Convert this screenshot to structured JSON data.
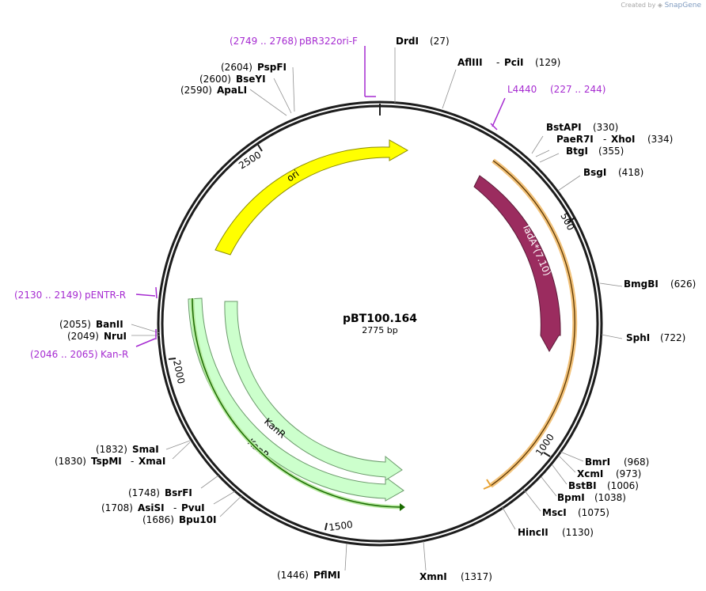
{
  "credit": {
    "prefix": "Created by",
    "brand": "SnapGene"
  },
  "plasmid": {
    "name": "pBT100.164",
    "length_label": "2775 bp",
    "length": 2775
  },
  "colors": {
    "ori": "#ffff00",
    "tada": "#9b2c5f",
    "kanr": "#ccffcc",
    "orf": "#e8a233",
    "orf_dark": "#1a6b00",
    "primer": "#a62bd1",
    "backbone": "#1c1c1c"
  },
  "features": [
    {
      "label": "ori",
      "color": "#ffff00"
    },
    {
      "label": "TadA*(7.10)",
      "color": "#9b2c5f"
    },
    {
      "label": "KanR",
      "color": "#ccffcc"
    },
    {
      "label": "KanR",
      "color": "#ccffcc"
    }
  ],
  "ticks": [
    "500",
    "1000",
    "1500",
    "2000",
    "2500"
  ],
  "sites": [
    {
      "name": "DrdI",
      "pos": "(27)"
    },
    {
      "name": "AflIII",
      "sep": "-",
      "name2": "PciI",
      "pos": "(129)"
    },
    {
      "name": "BstAPI",
      "pos": "(330)"
    },
    {
      "name": "PaeR7I",
      "sep": "-",
      "name2": "XhoI",
      "pos": "(334)"
    },
    {
      "name": "BtgI",
      "pos": "(355)"
    },
    {
      "name": "BsgI",
      "pos": "(418)"
    },
    {
      "name": "BmgBI",
      "pos": "(626)"
    },
    {
      "name": "SphI",
      "pos": "(722)"
    },
    {
      "name": "BmrI",
      "pos": "(968)"
    },
    {
      "name": "XcmI",
      "pos": "(973)"
    },
    {
      "name": "BstBI",
      "pos": "(1006)"
    },
    {
      "name": "BpmI",
      "pos": "(1038)"
    },
    {
      "name": "MscI",
      "pos": "(1075)"
    },
    {
      "name": "HincII",
      "pos": "(1130)"
    },
    {
      "name": "XmnI",
      "pos": "(1317)"
    },
    {
      "name": "PflMI",
      "pos": "(1446)"
    },
    {
      "name": "Bpu10I",
      "pos": "(1686)"
    },
    {
      "name": "AsiSI",
      "sep": "-",
      "name2": "PvuI",
      "pos": "(1708)"
    },
    {
      "name": "BsrFI",
      "pos": "(1748)"
    },
    {
      "name": "TspMI",
      "sep": "-",
      "name2": "XmaI",
      "pos": "(1830)"
    },
    {
      "name": "SmaI",
      "pos": "(1832)"
    },
    {
      "name": "NruI",
      "pos": "(2049)"
    },
    {
      "name": "BanII",
      "pos": "(2055)"
    },
    {
      "name": "ApaLI",
      "pos": "(2590)"
    },
    {
      "name": "BseYI",
      "pos": "(2600)"
    },
    {
      "name": "PspFI",
      "pos": "(2604)"
    }
  ],
  "primers": [
    {
      "name": "pBR322ori-F",
      "range": "(2749 .. 2768)"
    },
    {
      "name": "L4440",
      "range": "(227 .. 244)"
    },
    {
      "name": "pENTR-R",
      "range": "(2130 .. 2149)"
    },
    {
      "name": "Kan-R",
      "range": "(2046 .. 2065)"
    }
  ]
}
